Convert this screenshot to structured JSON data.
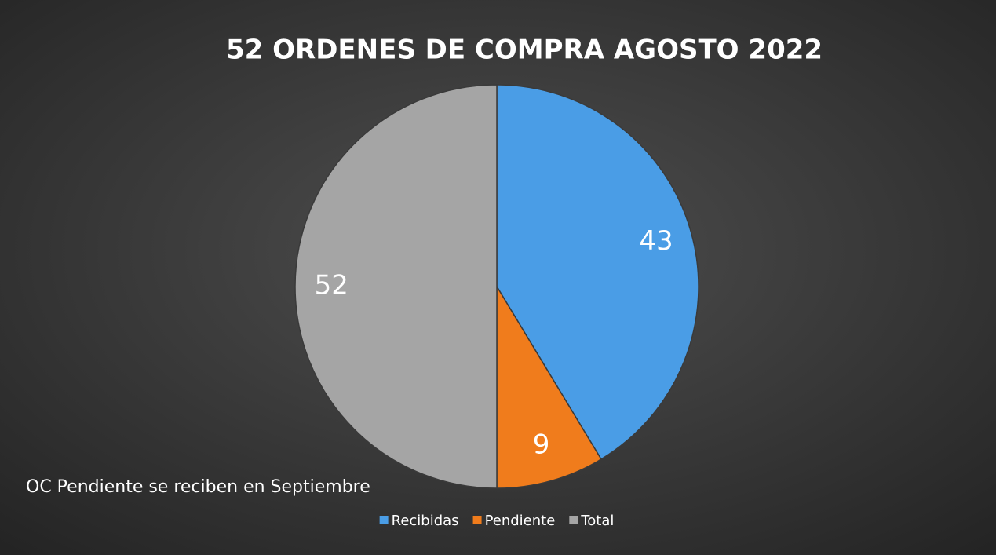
{
  "chart_data": {
    "type": "pie",
    "title": "52 ORDENES DE COMPRA AGOSTO 2022",
    "categories": [
      "Recibidas",
      "Pendiente",
      "Total"
    ],
    "values": [
      43,
      9,
      52
    ],
    "colors": [
      "#4a9de6",
      "#f07c1c",
      "#a5a5a5"
    ],
    "annotation": "OC Pendiente se reciben en Septiembre",
    "legend": "bottom"
  }
}
